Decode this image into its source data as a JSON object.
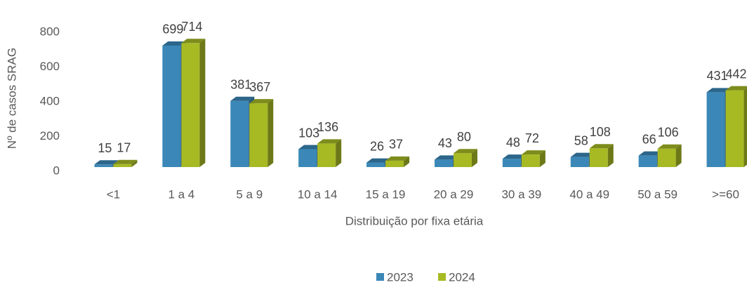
{
  "chart_data": {
    "type": "bar3d",
    "x_label": "Distribuição por fixa etária",
    "y_label": "Nº de casos SRAG",
    "categories": [
      "<1",
      "1 a 4",
      "5 a 9",
      "10 a 14",
      "15 a 19",
      "20 a 29",
      "30 a 39",
      "40 a 49",
      "50 a 59",
      ">=60"
    ],
    "series": [
      {
        "name": "2023",
        "color": "#3b88b8",
        "values": [
          15,
          699,
          381,
          103,
          26,
          43,
          48,
          58,
          66,
          431
        ]
      },
      {
        "name": "2024",
        "color": "#a7ba24",
        "values": [
          17,
          714,
          367,
          136,
          37,
          80,
          72,
          108,
          106,
          442
        ]
      }
    ],
    "ylim": [
      0,
      800
    ],
    "yticks": [
      0,
      200,
      400,
      600,
      800
    ],
    "grid": false,
    "legend": "bottom"
  }
}
